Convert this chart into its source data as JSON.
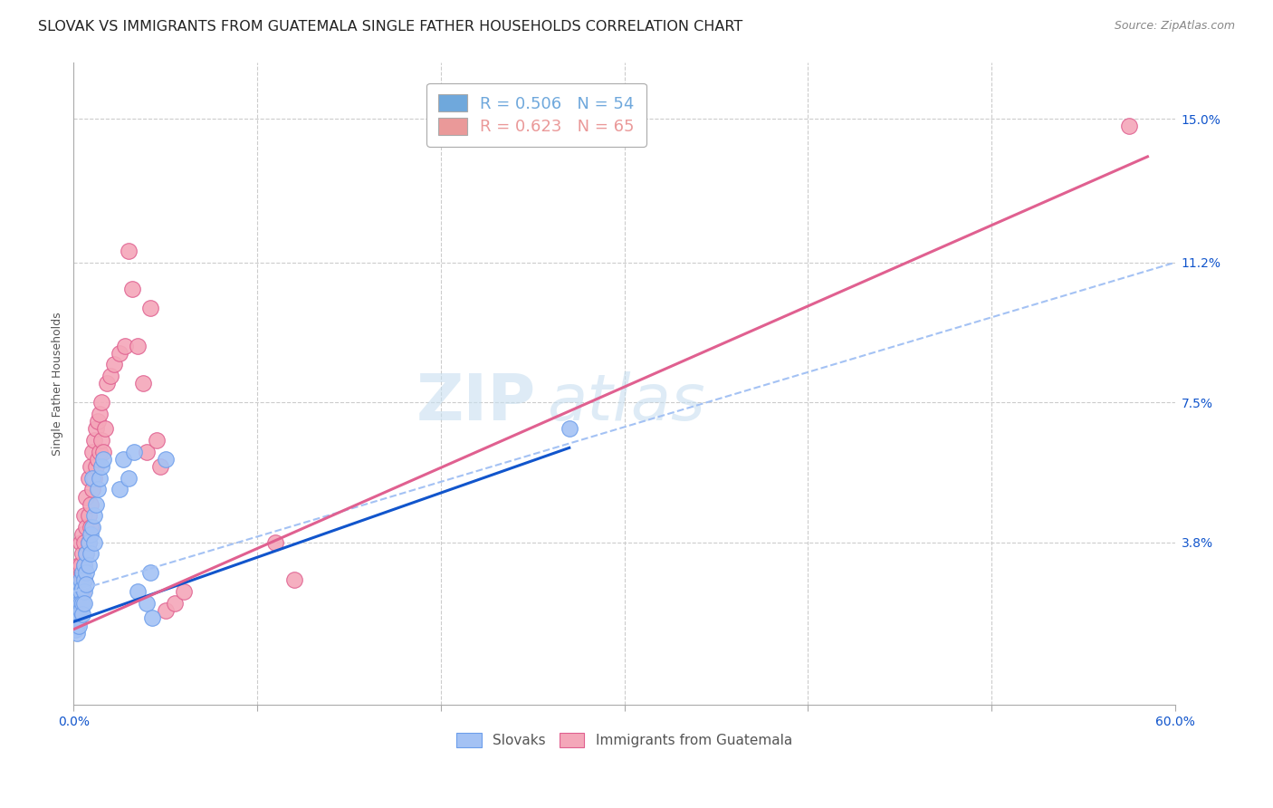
{
  "title": "SLOVAK VS IMMIGRANTS FROM GUATEMALA SINGLE FATHER HOUSEHOLDS CORRELATION CHART",
  "source": "Source: ZipAtlas.com",
  "ylabel": "Single Father Households",
  "ytick_values": [
    0.038,
    0.075,
    0.112,
    0.15
  ],
  "ytick_labels": [
    "3.8%",
    "7.5%",
    "11.2%",
    "15.0%"
  ],
  "xlim": [
    0.0,
    0.6
  ],
  "ylim": [
    -0.005,
    0.165
  ],
  "xtick_positions": [
    0.0,
    0.1,
    0.2,
    0.3,
    0.4,
    0.5,
    0.6
  ],
  "legend_entries": [
    {
      "label": "R = 0.506   N = 54",
      "color": "#6fa8dc"
    },
    {
      "label": "R = 0.623   N = 65",
      "color": "#ea9999"
    }
  ],
  "blue_scatter": [
    [
      0.001,
      0.022
    ],
    [
      0.001,
      0.02
    ],
    [
      0.001,
      0.018
    ],
    [
      0.001,
      0.015
    ],
    [
      0.002,
      0.025
    ],
    [
      0.002,
      0.022
    ],
    [
      0.002,
      0.02
    ],
    [
      0.002,
      0.018
    ],
    [
      0.002,
      0.016
    ],
    [
      0.002,
      0.014
    ],
    [
      0.003,
      0.026
    ],
    [
      0.003,
      0.024
    ],
    [
      0.003,
      0.022
    ],
    [
      0.003,
      0.02
    ],
    [
      0.003,
      0.018
    ],
    [
      0.003,
      0.016
    ],
    [
      0.004,
      0.028
    ],
    [
      0.004,
      0.025
    ],
    [
      0.004,
      0.022
    ],
    [
      0.004,
      0.02
    ],
    [
      0.005,
      0.03
    ],
    [
      0.005,
      0.026
    ],
    [
      0.005,
      0.022
    ],
    [
      0.005,
      0.019
    ],
    [
      0.006,
      0.032
    ],
    [
      0.006,
      0.028
    ],
    [
      0.006,
      0.025
    ],
    [
      0.006,
      0.022
    ],
    [
      0.007,
      0.035
    ],
    [
      0.007,
      0.03
    ],
    [
      0.007,
      0.027
    ],
    [
      0.008,
      0.038
    ],
    [
      0.008,
      0.032
    ],
    [
      0.009,
      0.04
    ],
    [
      0.009,
      0.035
    ],
    [
      0.01,
      0.042
    ],
    [
      0.01,
      0.055
    ],
    [
      0.011,
      0.045
    ],
    [
      0.011,
      0.038
    ],
    [
      0.012,
      0.048
    ],
    [
      0.013,
      0.052
    ],
    [
      0.014,
      0.055
    ],
    [
      0.015,
      0.058
    ],
    [
      0.016,
      0.06
    ],
    [
      0.025,
      0.052
    ],
    [
      0.027,
      0.06
    ],
    [
      0.03,
      0.055
    ],
    [
      0.033,
      0.062
    ],
    [
      0.035,
      0.025
    ],
    [
      0.04,
      0.022
    ],
    [
      0.042,
      0.03
    ],
    [
      0.043,
      0.018
    ],
    [
      0.05,
      0.06
    ],
    [
      0.27,
      0.068
    ]
  ],
  "pink_scatter": [
    [
      0.001,
      0.022
    ],
    [
      0.001,
      0.02
    ],
    [
      0.002,
      0.028
    ],
    [
      0.002,
      0.025
    ],
    [
      0.002,
      0.022
    ],
    [
      0.002,
      0.018
    ],
    [
      0.003,
      0.032
    ],
    [
      0.003,
      0.028
    ],
    [
      0.003,
      0.025
    ],
    [
      0.003,
      0.022
    ],
    [
      0.003,
      0.018
    ],
    [
      0.004,
      0.038
    ],
    [
      0.004,
      0.032
    ],
    [
      0.004,
      0.028
    ],
    [
      0.004,
      0.025
    ],
    [
      0.005,
      0.04
    ],
    [
      0.005,
      0.035
    ],
    [
      0.005,
      0.028
    ],
    [
      0.005,
      0.025
    ],
    [
      0.006,
      0.045
    ],
    [
      0.006,
      0.038
    ],
    [
      0.006,
      0.032
    ],
    [
      0.006,
      0.028
    ],
    [
      0.007,
      0.05
    ],
    [
      0.007,
      0.042
    ],
    [
      0.007,
      0.035
    ],
    [
      0.008,
      0.055
    ],
    [
      0.008,
      0.045
    ],
    [
      0.008,
      0.038
    ],
    [
      0.009,
      0.058
    ],
    [
      0.009,
      0.048
    ],
    [
      0.009,
      0.042
    ],
    [
      0.01,
      0.062
    ],
    [
      0.01,
      0.052
    ],
    [
      0.011,
      0.065
    ],
    [
      0.011,
      0.055
    ],
    [
      0.012,
      0.068
    ],
    [
      0.012,
      0.058
    ],
    [
      0.013,
      0.07
    ],
    [
      0.013,
      0.06
    ],
    [
      0.014,
      0.072
    ],
    [
      0.014,
      0.062
    ],
    [
      0.015,
      0.075
    ],
    [
      0.015,
      0.065
    ],
    [
      0.016,
      0.062
    ],
    [
      0.017,
      0.068
    ],
    [
      0.018,
      0.08
    ],
    [
      0.02,
      0.082
    ],
    [
      0.022,
      0.085
    ],
    [
      0.025,
      0.088
    ],
    [
      0.028,
      0.09
    ],
    [
      0.03,
      0.115
    ],
    [
      0.032,
      0.105
    ],
    [
      0.035,
      0.09
    ],
    [
      0.038,
      0.08
    ],
    [
      0.04,
      0.062
    ],
    [
      0.042,
      0.1
    ],
    [
      0.045,
      0.065
    ],
    [
      0.047,
      0.058
    ],
    [
      0.05,
      0.02
    ],
    [
      0.055,
      0.022
    ],
    [
      0.06,
      0.025
    ],
    [
      0.11,
      0.038
    ],
    [
      0.12,
      0.028
    ],
    [
      0.575,
      0.148
    ]
  ],
  "blue_line": {
    "x": [
      0.0,
      0.27
    ],
    "y": [
      0.017,
      0.063
    ]
  },
  "pink_line": {
    "x": [
      0.0,
      0.585
    ],
    "y": [
      0.015,
      0.14
    ]
  },
  "blue_ci_dashed": {
    "x": [
      0.0,
      0.6
    ],
    "y": [
      0.025,
      0.112
    ]
  },
  "blue_line_color": "#1155cc",
  "pink_line_color": "#e06090",
  "blue_ci_color": "#a4c2f4",
  "scatter_blue_facecolor": "#a4c2f4",
  "scatter_pink_facecolor": "#f4a7b9",
  "scatter_blue_edgecolor": "#6d9eeb",
  "scatter_pink_edgecolor": "#e06090",
  "grid_color": "#cccccc",
  "background_color": "#ffffff",
  "title_fontsize": 11.5,
  "axis_label_fontsize": 9,
  "tick_fontsize": 10,
  "legend_fontsize": 13,
  "watermark_text": "ZIPatlas",
  "watermark_color": "#c8dff0",
  "watermark_fontsize": 52
}
